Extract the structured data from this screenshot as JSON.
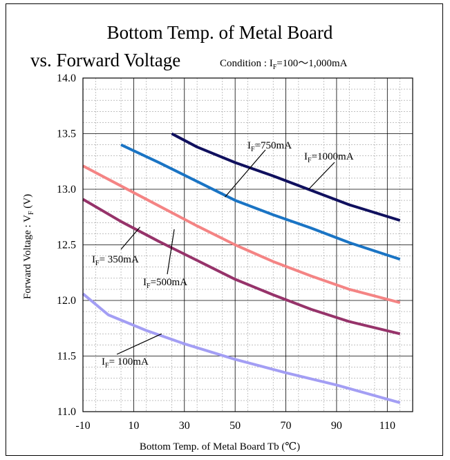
{
  "chart_data": {
    "type": "line",
    "title_line1": "Bottom Temp. of Metal Board",
    "title_line2": "vs. Forward Voltage",
    "condition": {
      "label": "Condition : ",
      "symbol": "I",
      "sub": "F",
      "value": "=100〜1,000mA"
    },
    "xlabel": "Bottom Temp. of Metal Board Tb (℃)",
    "ylabel": {
      "prefix": "Forward Voltage : V",
      "sub": "F",
      "suffix": " (V)"
    },
    "xlim": [
      -10,
      120
    ],
    "ylim": [
      11.0,
      14.0
    ],
    "x_ticks": [
      -10,
      10,
      30,
      50,
      70,
      90,
      110
    ],
    "x_tick_labels": [
      "-10",
      "10",
      "30",
      "50",
      "70",
      "90",
      "110"
    ],
    "y_ticks": [
      11.0,
      11.5,
      12.0,
      12.5,
      13.0,
      13.5,
      14.0
    ],
    "y_tick_labels": [
      "11.0",
      "11.5",
      "12.0",
      "12.5",
      "13.0",
      "13.5",
      "14.0"
    ],
    "grid": true,
    "series": [
      {
        "name": "I_F=1000mA",
        "color": "#10105e",
        "x": [
          25,
          35,
          50,
          65,
          80,
          95,
          115
        ],
        "y": [
          13.5,
          13.38,
          13.24,
          13.12,
          12.99,
          12.86,
          12.72
        ]
      },
      {
        "name": "I_F=750mA",
        "color": "#1a74c4",
        "x": [
          5,
          20,
          35,
          50,
          65,
          80,
          95,
          115
        ],
        "y": [
          13.4,
          13.24,
          13.07,
          12.9,
          12.77,
          12.65,
          12.52,
          12.37
        ]
      },
      {
        "name": "I_F=500mA",
        "color": "#f48484",
        "x": [
          -10,
          5,
          20,
          35,
          50,
          65,
          80,
          95,
          115
        ],
        "y": [
          13.21,
          13.03,
          12.85,
          12.67,
          12.5,
          12.35,
          12.22,
          12.1,
          11.98
        ]
      },
      {
        "name": "I_F=350mA",
        "color": "#96336a",
        "x": [
          -10,
          5,
          20,
          35,
          50,
          65,
          80,
          95,
          115
        ],
        "y": [
          12.91,
          12.71,
          12.53,
          12.36,
          12.19,
          12.05,
          11.92,
          11.81,
          11.7
        ]
      },
      {
        "name": "I_F=100mA",
        "color": "#a39ef4",
        "x": [
          -10,
          0,
          15,
          30,
          50,
          70,
          90,
          115
        ],
        "y": [
          12.06,
          11.87,
          11.73,
          11.61,
          11.47,
          11.35,
          11.24,
          11.08
        ]
      }
    ],
    "annotations": [
      {
        "symbol": "I",
        "sub": "F",
        "text": "=750mA"
      },
      {
        "symbol": "I",
        "sub": "F",
        "text": "=1000mA"
      },
      {
        "symbol": "I",
        "sub": "F",
        "text": "= 350mA"
      },
      {
        "symbol": "I",
        "sub": "F",
        "text": "=500mA"
      },
      {
        "symbol": "I",
        "sub": "F",
        "text": "= 100mA"
      }
    ]
  }
}
